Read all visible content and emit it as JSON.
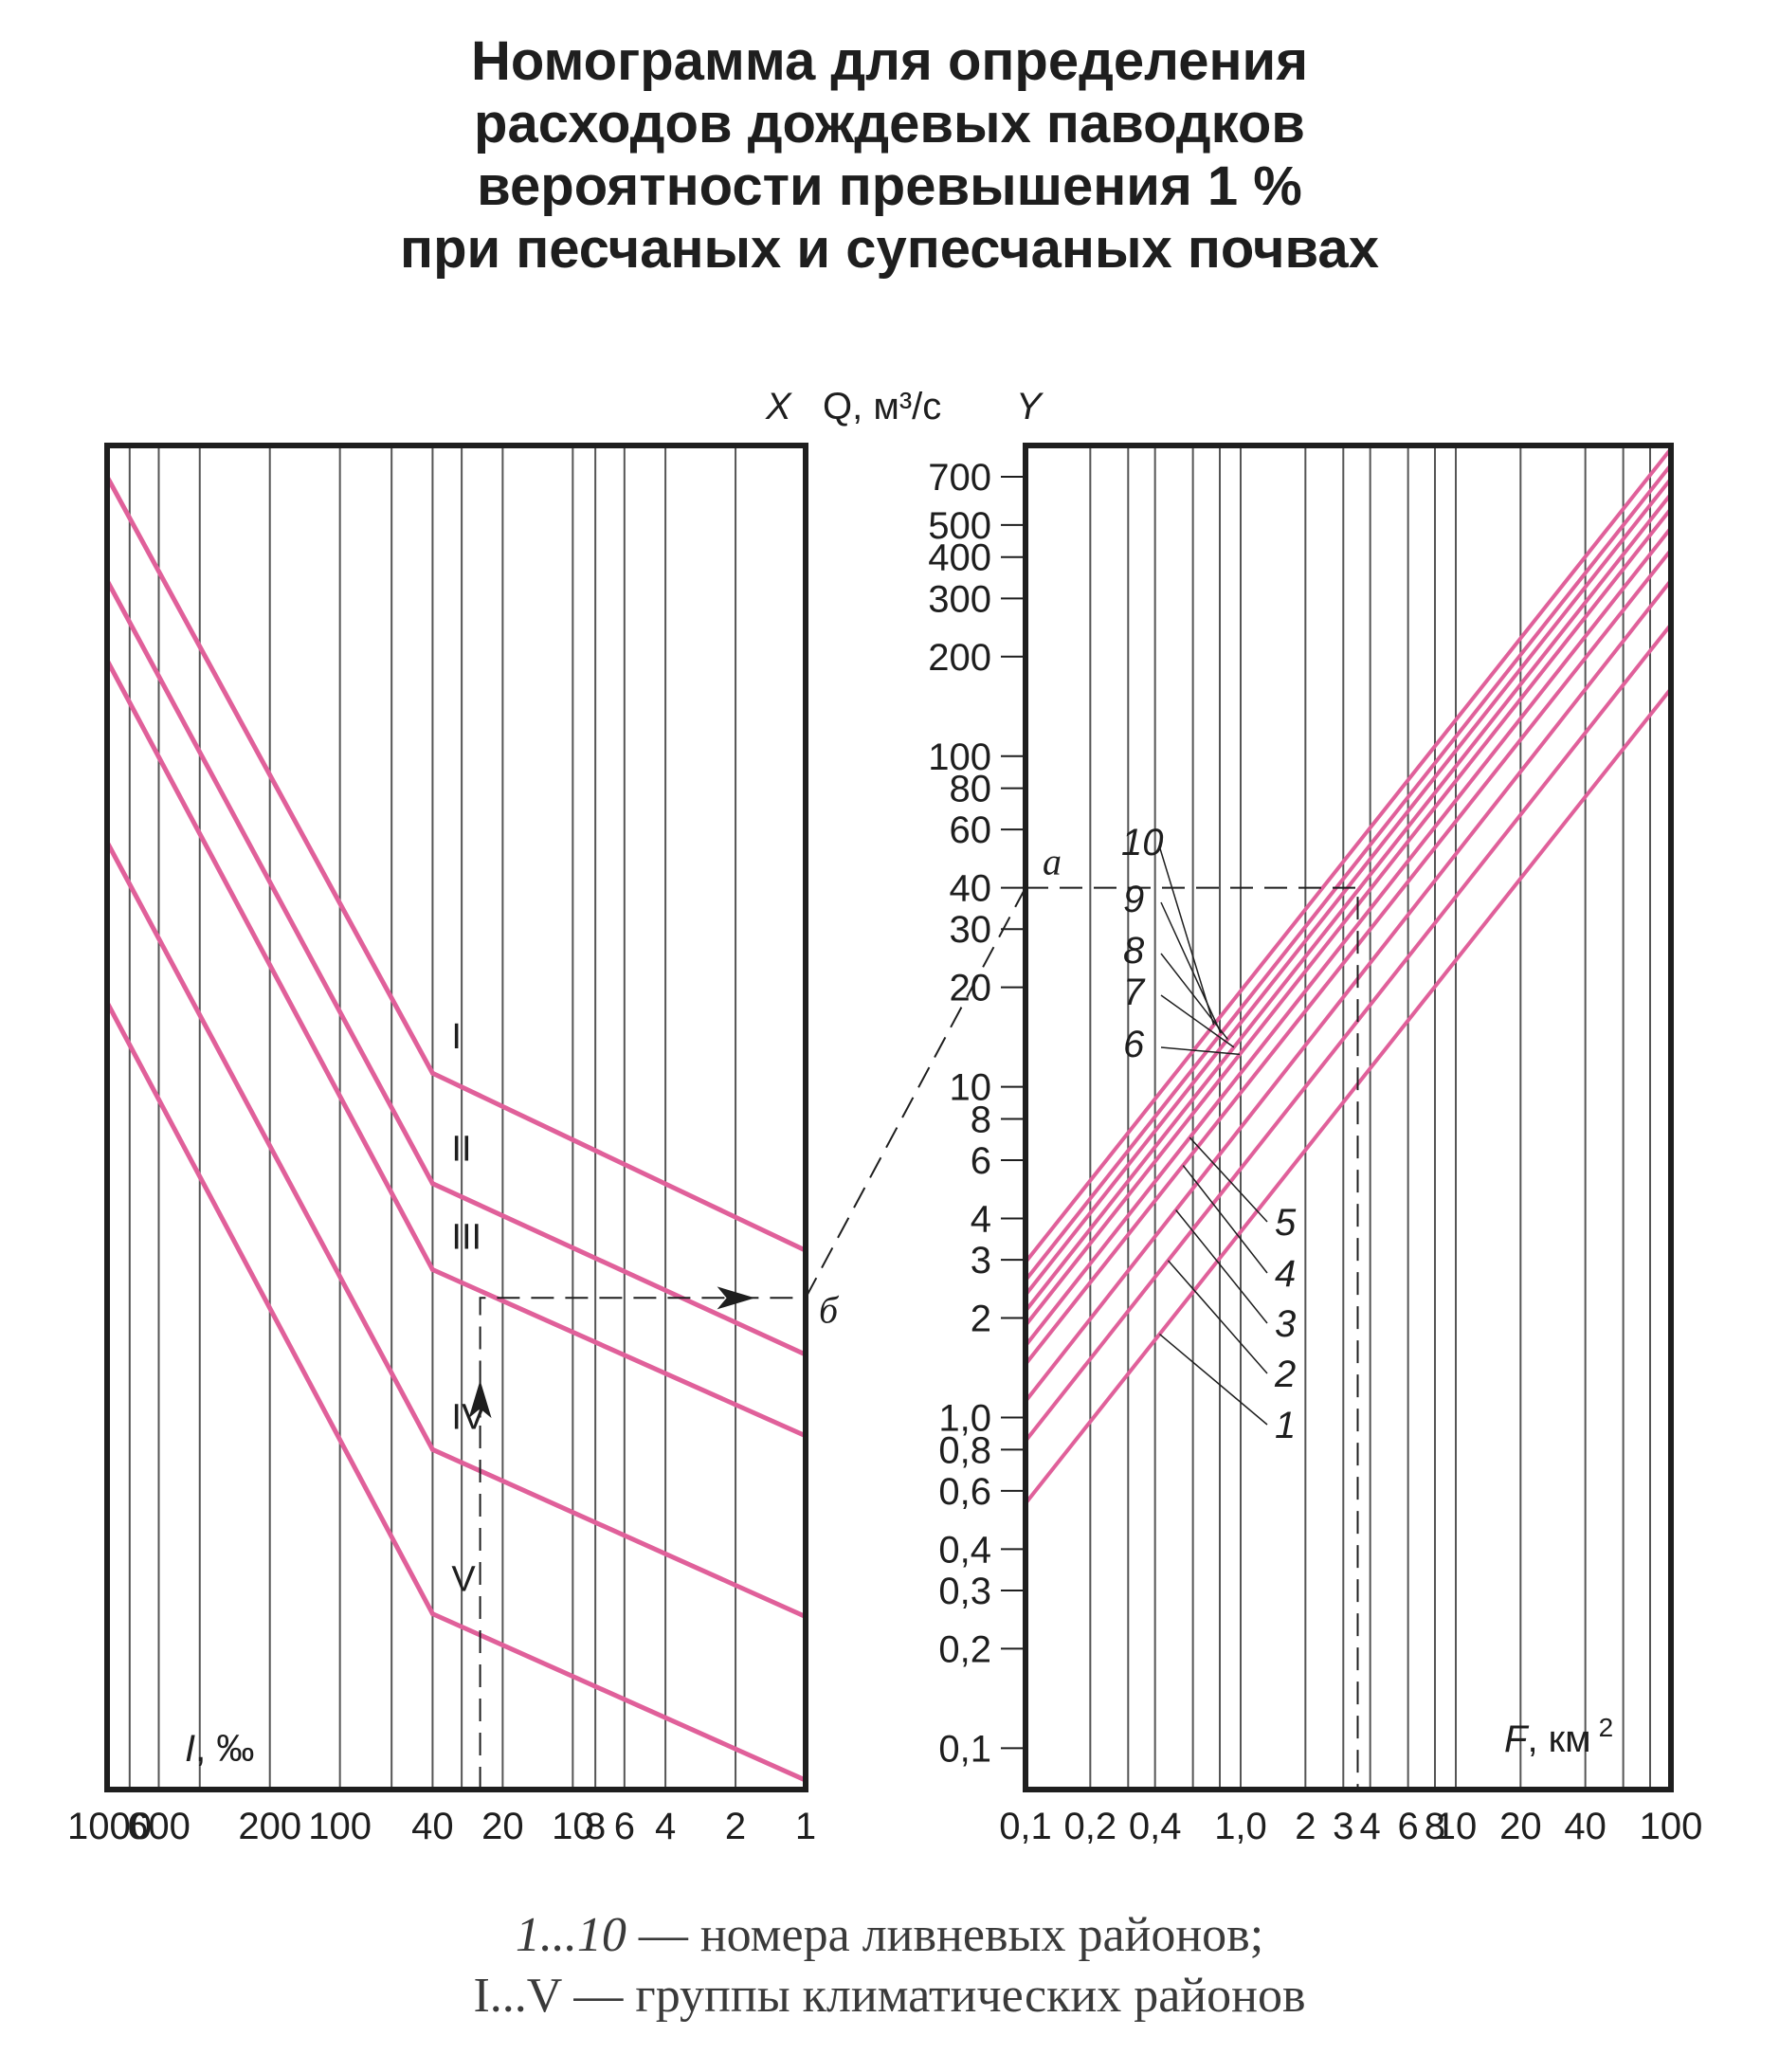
{
  "title_lines": [
    "Номограмма для определения",
    "расходов дождевых паводков",
    "вероятности превышения 1 %",
    "при песчаных и супесчаных почвах"
  ],
  "caption": {
    "line1_ital": "1...10",
    "line1_rest": " — номера ливневых районов;",
    "line2": "I...V — группы климатических районов"
  },
  "colors": {
    "curve": "#e0609a",
    "frame": "#1e1e1e",
    "grid": "#555555",
    "guide": "#1e1e1e"
  },
  "chart_data": [
    {
      "type": "line",
      "panel": "left",
      "x_label_ital": "I",
      "x_label_rest": ", ‰",
      "x_scale": "log",
      "x_reversed": true,
      "x_range": [
        1000,
        1
      ],
      "y_scale": "log",
      "y_range": [
        0.075,
        870
      ],
      "x_ticks": [
        {
          "v": 1000,
          "label": "1000"
        },
        {
          "v": 600,
          "label": "600"
        },
        {
          "v": 200,
          "label": "200"
        },
        {
          "v": 100,
          "label": "100"
        },
        {
          "v": 40,
          "label": "40"
        },
        {
          "v": 20,
          "label": "20"
        },
        {
          "v": 10,
          "label": "10"
        },
        {
          "v": 8,
          "label": "8"
        },
        {
          "v": 6,
          "label": "6"
        },
        {
          "v": 4,
          "label": "4"
        },
        {
          "v": 2,
          "label": "2"
        },
        {
          "v": 1,
          "label": "1"
        }
      ],
      "x_grid": [
        800,
        600,
        400,
        200,
        100,
        60,
        40,
        30,
        20,
        10,
        8,
        6,
        4,
        2
      ],
      "series": [
        {
          "name": "I",
          "points": [
            [
              1000,
              700
            ],
            [
              40,
              11
            ],
            [
              1,
              3.2
            ]
          ]
        },
        {
          "name": "II",
          "points": [
            [
              1000,
              340
            ],
            [
              40,
              5.1
            ],
            [
              1,
              1.55
            ]
          ]
        },
        {
          "name": "III",
          "points": [
            [
              1000,
              195
            ],
            [
              40,
              2.8
            ],
            [
              1,
              0.88
            ]
          ]
        },
        {
          "name": "IV",
          "points": [
            [
              1000,
              55
            ],
            [
              40,
              0.8
            ],
            [
              1,
              0.25
            ]
          ]
        },
        {
          "name": "V",
          "points": [
            [
              1000,
              18
            ],
            [
              40,
              0.255
            ],
            [
              1,
              0.08
            ]
          ]
        }
      ],
      "guide_points": [
        [
          25,
          1.0
        ],
        [
          25,
          2.3
        ],
        [
          1,
          2.3
        ]
      ],
      "point_labels": [
        {
          "name": "б",
          "at": [
            1,
            2.3
          ]
        }
      ]
    },
    {
      "type": "line",
      "panel": "right",
      "x_label_ital": "F",
      "x_label_rest": ", км",
      "x_label_sup": "2",
      "y_label": "Q, м³/с",
      "left_axis_letter": "X",
      "right_axis_letter": "Y",
      "x_scale": "log",
      "x_range": [
        0.1,
        100
      ],
      "y_scale": "log",
      "y_range": [
        0.075,
        870
      ],
      "x_ticks": [
        {
          "v": 0.1,
          "label": "0,1"
        },
        {
          "v": 0.2,
          "label": "0,2"
        },
        {
          "v": 0.4,
          "label": "0,4"
        },
        {
          "v": 1.0,
          "label": "1,0"
        },
        {
          "v": 2,
          "label": "2"
        },
        {
          "v": 3,
          "label": "3"
        },
        {
          "v": 4,
          "label": "4"
        },
        {
          "v": 6,
          "label": "6"
        },
        {
          "v": 8,
          "label": "8"
        },
        {
          "v": 10,
          "label": "10"
        },
        {
          "v": 20,
          "label": "20"
        },
        {
          "v": 40,
          "label": "40"
        },
        {
          "v": 100,
          "label": "100"
        }
      ],
      "x_grid": [
        0.2,
        0.3,
        0.4,
        0.6,
        0.8,
        1,
        2,
        3,
        4,
        6,
        8,
        10,
        20,
        40,
        60,
        80
      ],
      "y_ticks": [
        {
          "v": 700,
          "label": "700"
        },
        {
          "v": 500,
          "label": "500"
        },
        {
          "v": 400,
          "label": "400"
        },
        {
          "v": 300,
          "label": "300"
        },
        {
          "v": 200,
          "label": "200"
        },
        {
          "v": 100,
          "label": "100"
        },
        {
          "v": 80,
          "label": "80"
        },
        {
          "v": 60,
          "label": "60"
        },
        {
          "v": 40,
          "label": "40"
        },
        {
          "v": 30,
          "label": "30"
        },
        {
          "v": 20,
          "label": "20"
        },
        {
          "v": 10,
          "label": "10"
        },
        {
          "v": 8,
          "label": "8"
        },
        {
          "v": 6,
          "label": "6"
        },
        {
          "v": 4,
          "label": "4"
        },
        {
          "v": 3,
          "label": "3"
        },
        {
          "v": 2,
          "label": "2"
        },
        {
          "v": 1.0,
          "label": "1,0"
        },
        {
          "v": 0.8,
          "label": "0,8"
        },
        {
          "v": 0.6,
          "label": "0,6"
        },
        {
          "v": 0.4,
          "label": "0,4"
        },
        {
          "v": 0.3,
          "label": "0,3"
        },
        {
          "v": 0.2,
          "label": "0,2"
        },
        {
          "v": 0.1,
          "label": "0,1"
        }
      ],
      "series": [
        {
          "name": "1",
          "points": [
            [
              0.1,
              0.55
            ],
            [
              100,
              160
            ]
          ]
        },
        {
          "name": "2",
          "points": [
            [
              0.1,
              0.85
            ],
            [
              100,
              250
            ]
          ]
        },
        {
          "name": "3",
          "points": [
            [
              0.1,
              1.12
            ],
            [
              100,
              340
            ]
          ]
        },
        {
          "name": "4",
          "points": [
            [
              0.1,
              1.45
            ],
            [
              100,
              420
            ]
          ]
        },
        {
          "name": "5",
          "points": [
            [
              0.1,
              1.65
            ],
            [
              100,
              490
            ]
          ]
        },
        {
          "name": "6",
          "points": [
            [
              0.1,
              1.9
            ],
            [
              100,
              560
            ]
          ]
        },
        {
          "name": "7",
          "points": [
            [
              0.1,
              2.1
            ],
            [
              100,
              620
            ]
          ]
        },
        {
          "name": "8",
          "points": [
            [
              0.1,
              2.35
            ],
            [
              100,
              690
            ]
          ]
        },
        {
          "name": "9",
          "points": [
            [
              0.1,
              2.6
            ],
            [
              100,
              760
            ]
          ]
        },
        {
          "name": "10",
          "points": [
            [
              0.1,
              2.95
            ],
            [
              100,
              850
            ]
          ]
        }
      ],
      "guide_points": [
        [
          0.1,
          40
        ],
        [
          3.5,
          40
        ],
        [
          3.5,
          0.075
        ]
      ],
      "point_labels": [
        {
          "name": "a",
          "at": [
            0.1,
            40
          ]
        }
      ]
    }
  ]
}
